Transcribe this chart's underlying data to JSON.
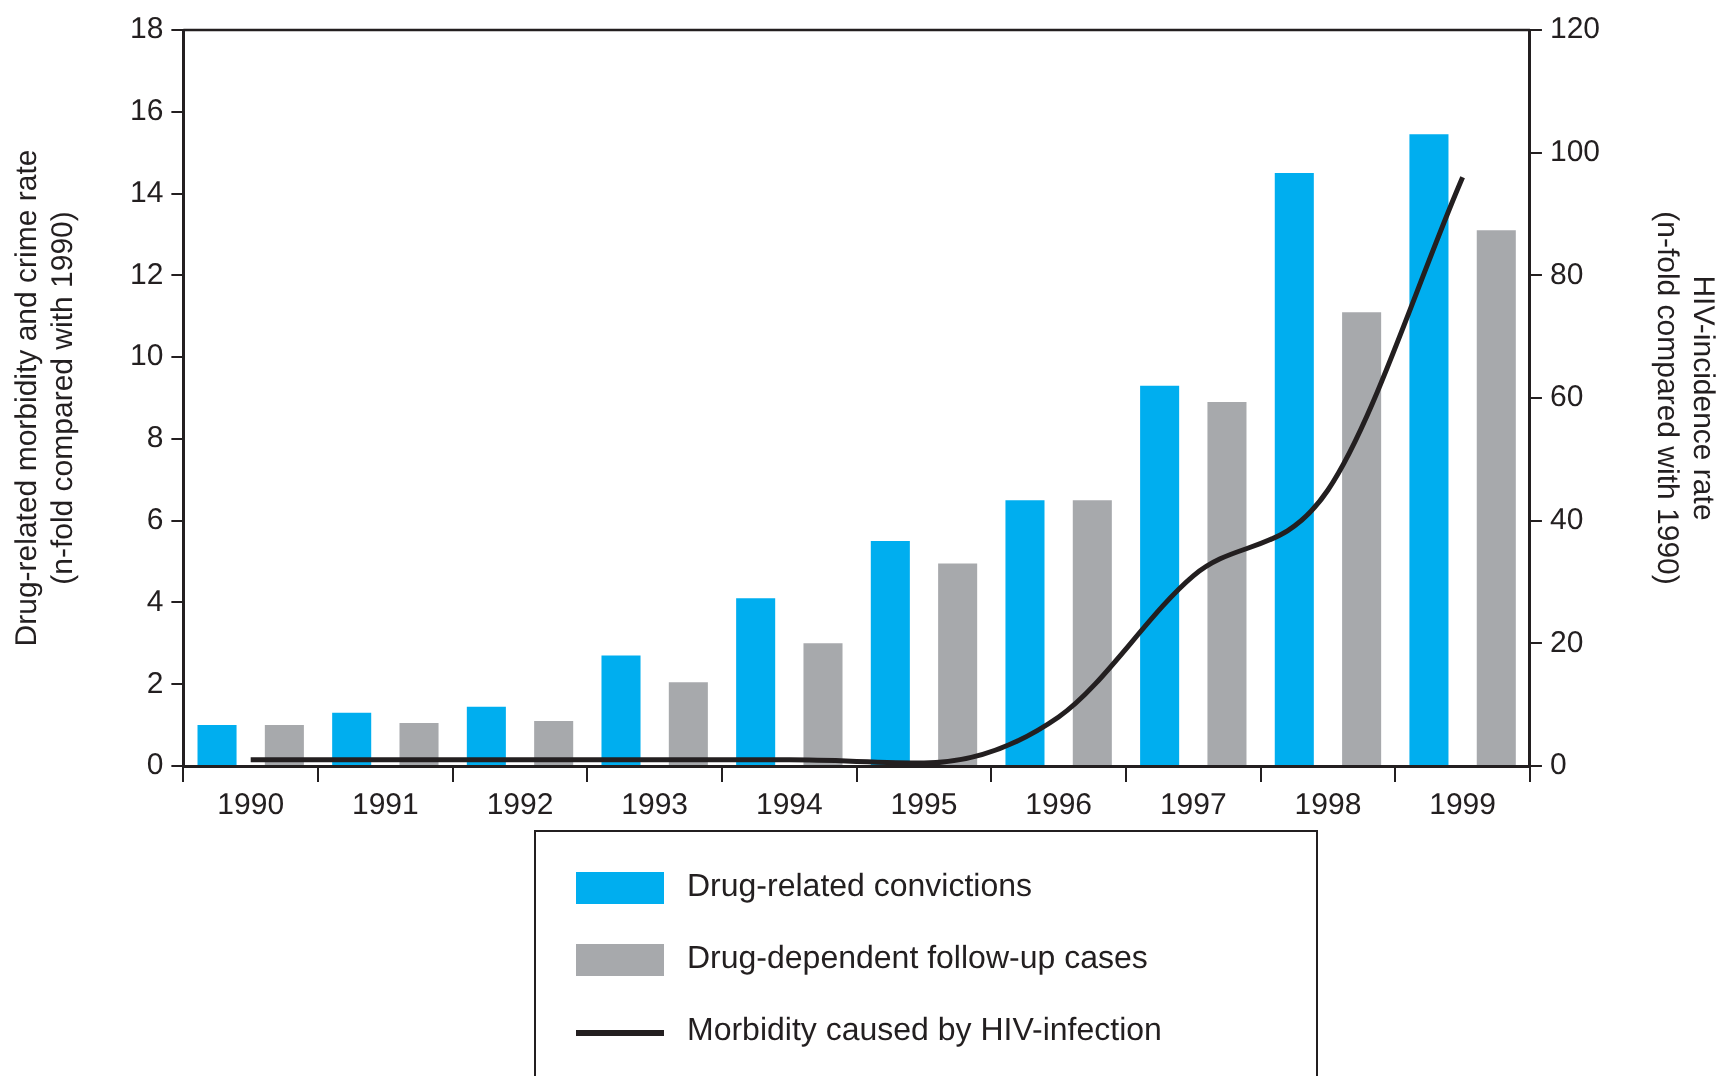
{
  "chart_data": {
    "type": "bar",
    "categories": [
      "1990",
      "1991",
      "1992",
      "1993",
      "1994",
      "1995",
      "1996",
      "1997",
      "1998",
      "1999"
    ],
    "ylabel": "Drug-related morbidity and crime rate\n(n-fold compared with 1990)",
    "y2label": "HIV-incidence rate\n(n-fold compared with 1990)",
    "ylim": [
      0,
      18
    ],
    "yticks": [
      0,
      2,
      4,
      6,
      8,
      10,
      12,
      14,
      16,
      18
    ],
    "y2lim": [
      0,
      120
    ],
    "y2ticks": [
      0,
      20,
      40,
      60,
      80,
      100,
      120
    ],
    "grid": false,
    "legend": "bottom",
    "series": [
      {
        "name": "Drug-related convictions",
        "color": "#00aeef",
        "values": [
          1.0,
          1.3,
          1.45,
          2.7,
          4.1,
          5.5,
          6.5,
          9.3,
          14.5,
          15.45
        ]
      },
      {
        "name": "Drug-dependent follow-up cases",
        "color": "#a7a9ac",
        "values": [
          1.0,
          1.05,
          1.1,
          2.05,
          3.0,
          4.95,
          6.5,
          8.9,
          11.1,
          13.1
        ]
      },
      {
        "name": "Morbidity caused by HIV-infection",
        "type": "line",
        "axis": "y2",
        "color": "#231f20",
        "values": [
          1,
          1,
          1,
          1,
          1,
          0.5,
          8,
          31,
          45,
          96
        ]
      }
    ]
  }
}
